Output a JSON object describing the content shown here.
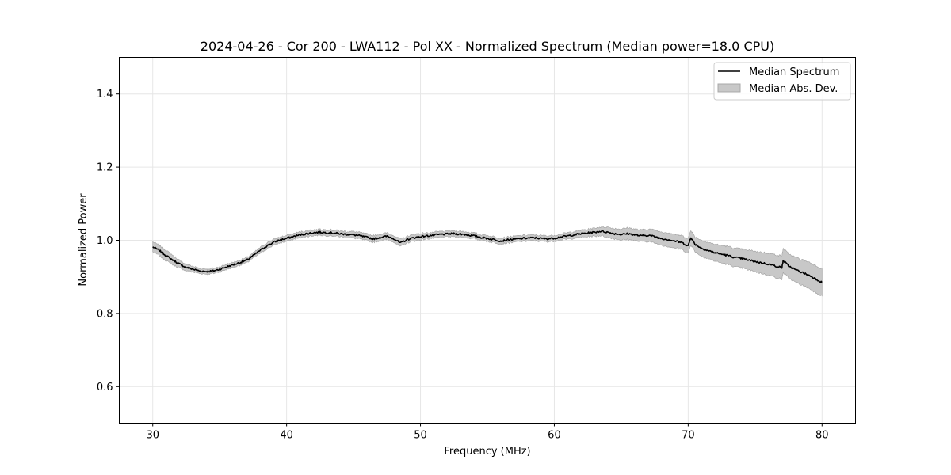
{
  "chart_data": {
    "type": "line",
    "title": "2024-04-26 - Cor 200 - LWA112 - Pol XX - Normalized Spectrum (Median power=18.0 CPU)",
    "xlabel": "Frequency (MHz)",
    "ylabel": "Normalized Power",
    "xlim": [
      27.5,
      82.5
    ],
    "ylim": [
      0.5,
      1.5
    ],
    "xticks": [
      30,
      40,
      50,
      60,
      70,
      80
    ],
    "yticks": [
      0.6,
      0.8,
      1.0,
      1.2,
      1.4
    ],
    "xtick_labels": [
      "30",
      "40",
      "50",
      "60",
      "70",
      "80"
    ],
    "ytick_labels": [
      "0.6",
      "0.8",
      "1.0",
      "1.2",
      "1.4"
    ],
    "grid": true,
    "legend_position": "top-right",
    "legend": {
      "line_label": "Median Spectrum",
      "band_label": "Median Abs. Dev."
    },
    "series": [
      {
        "name": "Median Spectrum",
        "color": "#000000",
        "x": [
          30,
          30.5,
          31,
          31.5,
          32,
          32.5,
          33,
          33.5,
          34,
          34.5,
          35,
          35.5,
          36,
          36.5,
          37,
          37.5,
          38,
          38.5,
          39,
          39.5,
          40,
          40.5,
          41,
          41.5,
          42,
          42.5,
          43,
          43.5,
          44,
          44.5,
          45,
          45.5,
          46,
          46.5,
          47,
          47.5,
          48,
          48.5,
          49,
          49.5,
          50,
          50.5,
          51,
          51.5,
          52,
          52.5,
          53,
          53.5,
          54,
          54.5,
          55,
          55.5,
          56,
          56.5,
          57,
          57.5,
          58,
          58.5,
          59,
          59.5,
          60,
          60.5,
          61,
          61.5,
          62,
          62.5,
          63,
          63.5,
          64,
          64.5,
          65,
          65.5,
          66,
          66.5,
          67,
          67.5,
          68,
          68.5,
          69,
          69.5,
          70,
          70.2,
          70.5,
          71,
          71.5,
          72,
          72.5,
          73,
          73.5,
          74,
          74.5,
          75,
          75.5,
          76,
          76.5,
          77,
          77.1,
          77.5,
          78,
          78.5,
          79,
          79.5,
          80
        ],
        "values": [
          0.982,
          0.972,
          0.958,
          0.946,
          0.935,
          0.926,
          0.921,
          0.916,
          0.915,
          0.916,
          0.921,
          0.927,
          0.933,
          0.939,
          0.945,
          0.958,
          0.972,
          0.984,
          0.994,
          1.001,
          1.005,
          1.01,
          1.015,
          1.018,
          1.021,
          1.022,
          1.021,
          1.02,
          1.018,
          1.016,
          1.015,
          1.012,
          1.008,
          1.004,
          1.008,
          1.011,
          1.005,
          0.992,
          1.002,
          1.007,
          1.01,
          1.012,
          1.014,
          1.016,
          1.017,
          1.018,
          1.017,
          1.015,
          1.012,
          1.008,
          1.005,
          1.002,
          0.998,
          1.001,
          1.003,
          1.005,
          1.006,
          1.007,
          1.005,
          1.004,
          1.006,
          1.009,
          1.012,
          1.015,
          1.018,
          1.02,
          1.022,
          1.025,
          1.022,
          1.018,
          1.016,
          1.018,
          1.015,
          1.012,
          1.014,
          1.01,
          1.005,
          1.002,
          0.998,
          0.994,
          0.985,
          1.008,
          0.99,
          0.978,
          0.972,
          0.966,
          0.962,
          0.958,
          0.953,
          0.95,
          0.946,
          0.942,
          0.938,
          0.935,
          0.93,
          0.925,
          0.945,
          0.93,
          0.92,
          0.912,
          0.905,
          0.895,
          0.885
        ]
      }
    ],
    "band": {
      "name": "Median Abs. Dev.",
      "color": "#c8c8c8",
      "lower": [
        0.968,
        0.958,
        0.944,
        0.933,
        0.925,
        0.917,
        0.913,
        0.909,
        0.908,
        0.909,
        0.914,
        0.92,
        0.926,
        0.932,
        0.938,
        0.951,
        0.964,
        0.976,
        0.986,
        0.993,
        0.997,
        1.002,
        1.007,
        1.01,
        1.013,
        1.014,
        1.013,
        1.012,
        1.01,
        1.008,
        1.006,
        1.003,
        0.999,
        0.995,
        0.999,
        1.002,
        0.996,
        0.982,
        0.993,
        0.998,
        1.001,
        1.004,
        1.006,
        1.008,
        1.009,
        1.01,
        1.009,
        1.007,
        1.004,
        1.0,
        0.997,
        0.994,
        0.99,
        0.993,
        0.995,
        0.997,
        0.998,
        0.999,
        0.997,
        0.996,
        0.998,
        1.001,
        1.003,
        1.006,
        1.008,
        1.01,
        1.011,
        1.013,
        1.008,
        1.004,
        1.001,
        1.002,
        0.999,
        0.996,
        0.997,
        0.992,
        0.987,
        0.983,
        0.979,
        0.975,
        0.965,
        0.988,
        0.97,
        0.956,
        0.95,
        0.943,
        0.938,
        0.933,
        0.928,
        0.924,
        0.919,
        0.914,
        0.909,
        0.905,
        0.899,
        0.893,
        0.912,
        0.897,
        0.886,
        0.877,
        0.869,
        0.858,
        0.848
      ],
      "upper": [
        0.996,
        0.986,
        0.972,
        0.959,
        0.945,
        0.935,
        0.929,
        0.923,
        0.922,
        0.923,
        0.928,
        0.934,
        0.94,
        0.946,
        0.952,
        0.965,
        0.98,
        0.992,
        1.002,
        1.009,
        1.013,
        1.018,
        1.023,
        1.026,
        1.029,
        1.03,
        1.029,
        1.028,
        1.026,
        1.024,
        1.024,
        1.021,
        1.017,
        1.013,
        1.017,
        1.02,
        1.014,
        1.002,
        1.011,
        1.016,
        1.019,
        1.02,
        1.022,
        1.024,
        1.025,
        1.026,
        1.025,
        1.023,
        1.02,
        1.016,
        1.013,
        1.01,
        1.006,
        1.009,
        1.011,
        1.013,
        1.014,
        1.015,
        1.013,
        1.012,
        1.014,
        1.017,
        1.021,
        1.024,
        1.028,
        1.03,
        1.033,
        1.037,
        1.036,
        1.032,
        1.031,
        1.034,
        1.031,
        1.028,
        1.031,
        1.028,
        1.023,
        1.021,
        1.017,
        1.013,
        1.005,
        1.028,
        1.01,
        1.0,
        0.994,
        0.989,
        0.986,
        0.983,
        0.978,
        0.976,
        0.973,
        0.97,
        0.967,
        0.965,
        0.961,
        0.957,
        0.978,
        0.963,
        0.954,
        0.947,
        0.941,
        0.932,
        0.922
      ]
    }
  }
}
